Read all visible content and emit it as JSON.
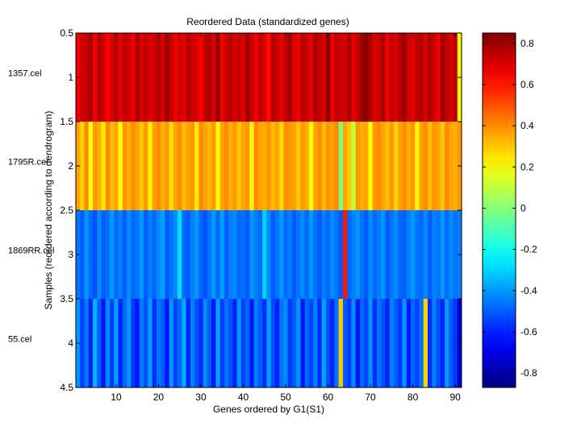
{
  "chart_data": [
    {
      "type": "heatmap",
      "title": "Reordered Data (standardized genes)",
      "xlabel": "Genes ordered by G1(S1)",
      "ylabel": "Samples (reordered according to dendrogram)",
      "xlim": [
        0.5,
        91.5
      ],
      "ylim": [
        0.5,
        4.5
      ],
      "xticks": [
        10,
        20,
        30,
        40,
        50,
        60,
        70,
        80,
        90
      ],
      "yticks": [
        0.5,
        1,
        1.5,
        2,
        2.5,
        3,
        3.5,
        4,
        4.5
      ],
      "row_labels": [
        "1357.cel",
        "1795R.cel",
        "1869RR.cel",
        "55.cel"
      ],
      "n_genes": 91,
      "colormap": "jet",
      "clim": [
        -0.87,
        0.85
      ],
      "colorbar_ticks": [
        0.8,
        0.6,
        0.4,
        0.2,
        0,
        -0.2,
        -0.4,
        -0.6,
        -0.8
      ],
      "values": [
        [
          0.66,
          0.72,
          0.74,
          0.78,
          0.66,
          0.76,
          0.72,
          0.64,
          0.7,
          0.76,
          0.68,
          0.74,
          0.72,
          0.66,
          0.78,
          0.7,
          0.74,
          0.68,
          0.72,
          0.76,
          0.7,
          0.8,
          0.74,
          0.66,
          0.72,
          0.68,
          0.76,
          0.72,
          0.7,
          0.64,
          0.74,
          0.78,
          0.7,
          0.82,
          0.66,
          0.72,
          0.76,
          0.7,
          0.74,
          0.68,
          0.8,
          0.72,
          0.66,
          0.74,
          0.7,
          0.62,
          0.76,
          0.72,
          0.68,
          0.74,
          0.8,
          0.7,
          0.66,
          0.76,
          0.72,
          0.68,
          0.78,
          0.74,
          0.7,
          0.82,
          0.66,
          0.74,
          0.72,
          0.7,
          0.78,
          0.68,
          0.74,
          0.8,
          0.84,
          0.76,
          0.7,
          0.72,
          0.78,
          0.66,
          0.74,
          0.7,
          0.76,
          0.8,
          0.72,
          0.68,
          0.74,
          0.76,
          0.7,
          0.78,
          0.72,
          0.66,
          0.8,
          0.74,
          0.7,
          0.76,
          0.22
        ],
        [
          0.36,
          0.28,
          0.4,
          0.2,
          0.38,
          0.34,
          0.24,
          0.4,
          0.32,
          0.36,
          0.2,
          0.38,
          0.34,
          0.4,
          0.36,
          0.3,
          0.38,
          0.22,
          0.36,
          0.4,
          0.34,
          0.38,
          0.26,
          0.36,
          0.4,
          0.32,
          0.36,
          0.38,
          0.24,
          0.4,
          0.36,
          0.32,
          0.38,
          0.2,
          0.36,
          0.4,
          0.34,
          0.38,
          0.3,
          0.36,
          0.38,
          0.22,
          0.4,
          0.36,
          0.34,
          0.38,
          0.32,
          0.36,
          0.26,
          0.4,
          0.38,
          0.36,
          0.3,
          0.38,
          0.34,
          0.2,
          0.36,
          0.4,
          0.32,
          0.38,
          0.36,
          0.4,
          -0.02,
          0.36,
          0.3,
          0.1,
          0.38,
          0.34,
          0.36,
          0.2,
          0.38,
          0.4,
          0.36,
          0.32,
          0.38,
          0.28,
          0.36,
          0.4,
          0.34,
          0.38,
          0.22,
          0.36,
          0.4,
          0.32,
          0.38,
          0.36,
          0.3,
          0.4,
          0.36,
          0.34,
          0.38
        ],
        [
          -0.45,
          -0.5,
          -0.4,
          -0.48,
          -0.52,
          -0.42,
          -0.5,
          -0.46,
          -0.4,
          -0.48,
          -0.44,
          -0.5,
          -0.42,
          -0.48,
          -0.46,
          -0.4,
          -0.5,
          -0.44,
          -0.48,
          -0.42,
          -0.38,
          -0.5,
          -0.46,
          -0.42,
          -0.28,
          -0.48,
          -0.5,
          -0.44,
          -0.4,
          -0.48,
          -0.52,
          -0.46,
          -0.4,
          -0.48,
          -0.38,
          -0.5,
          -0.44,
          -0.42,
          -0.48,
          -0.46,
          -0.5,
          -0.4,
          -0.44,
          -0.48,
          -0.3,
          -0.42,
          -0.5,
          -0.46,
          -0.4,
          -0.48,
          -0.44,
          -0.5,
          -0.46,
          -0.42,
          -0.48,
          -0.4,
          -0.46,
          -0.5,
          -0.44,
          -0.48,
          -0.42,
          -0.46,
          -0.5,
          0.6,
          -0.48,
          -0.44,
          -0.4,
          -0.46,
          -0.5,
          -0.42,
          -0.48,
          -0.44,
          -0.4,
          -0.5,
          -0.46,
          -0.42,
          -0.48,
          -0.5,
          -0.44,
          -0.4,
          -0.46,
          -0.48,
          -0.42,
          -0.5,
          -0.44,
          -0.46,
          -0.4,
          -0.48,
          -0.42,
          -0.46,
          -0.44
        ],
        [
          -0.4,
          -0.55,
          -0.45,
          -0.6,
          -0.35,
          -0.5,
          -0.62,
          -0.42,
          -0.55,
          -0.38,
          -0.6,
          -0.48,
          -0.4,
          -0.56,
          -0.62,
          -0.44,
          -0.52,
          -0.38,
          -0.58,
          -0.46,
          -0.5,
          -0.62,
          -0.4,
          -0.54,
          -0.48,
          -0.36,
          -0.6,
          -0.44,
          -0.52,
          -0.58,
          -0.42,
          -0.5,
          -0.62,
          -0.38,
          -0.56,
          -0.46,
          -0.52,
          -0.6,
          -0.4,
          -0.54,
          -0.48,
          -0.62,
          -0.44,
          -0.5,
          -0.58,
          -0.38,
          -0.52,
          -0.6,
          -0.46,
          -0.42,
          -0.56,
          -0.5,
          -0.4,
          -0.62,
          -0.48,
          -0.54,
          -0.44,
          -0.58,
          -0.38,
          -0.52,
          -0.6,
          -0.46,
          0.3,
          -0.5,
          -0.56,
          -0.42,
          -0.62,
          -0.48,
          -0.54,
          -0.4,
          -0.58,
          -0.46,
          -0.52,
          -0.6,
          -0.44,
          -0.5,
          -0.56,
          -0.4,
          -0.62,
          -0.48,
          -0.54,
          -0.46,
          0.28,
          -0.58,
          -0.44,
          -0.52,
          -0.6,
          -0.4,
          -0.5,
          -0.56,
          -0.74
        ]
      ]
    }
  ]
}
